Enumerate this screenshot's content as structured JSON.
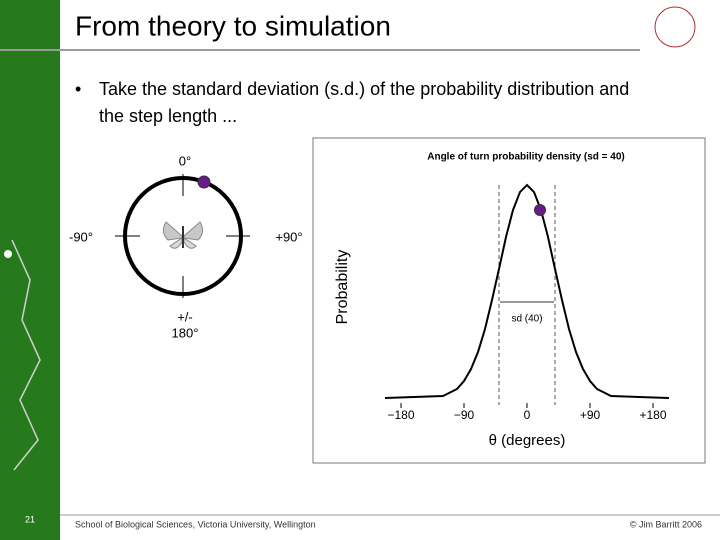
{
  "slide": {
    "title": "From theory to simulation",
    "bullet": [
      "Take the standard deviation (s.d.) of the probability distribution and",
      "the step length ..."
    ],
    "compass": [
      "0°",
      "-90°",
      "+90°",
      "+/-",
      "180°"
    ],
    "footer": {
      "page": "21",
      "school": "School of Biological Sciences, Victoria University, Wellington",
      "author": "© Jim Barritt 2006"
    }
  },
  "chart_data": {
    "type": "line",
    "title": "Angle of turn probability density (sd = 40)",
    "xlabel": "θ (degrees)",
    "ylabel": "Probability",
    "annotation": "sd (40)",
    "xlim": [
      -180,
      180
    ],
    "xticks": [
      {
        "value": -180,
        "label": "−180"
      },
      {
        "value": -90,
        "label": "−90"
      },
      0,
      {
        "value": 90,
        "label": "+90"
      },
      {
        "value": 180,
        "label": "+180"
      }
    ]
  }
}
